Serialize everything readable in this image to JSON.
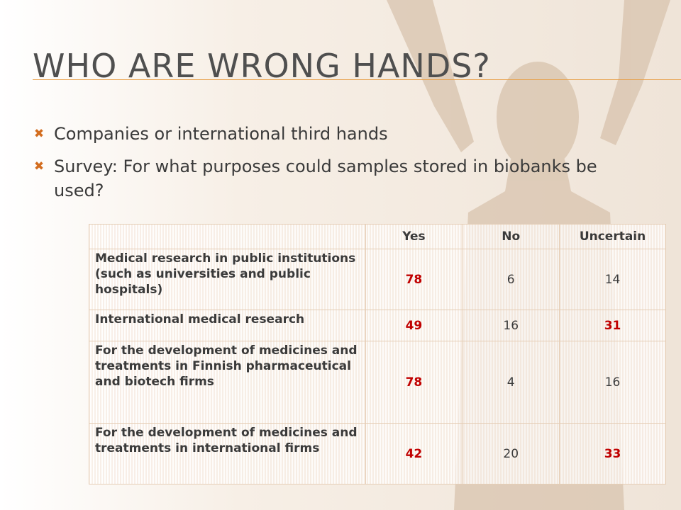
{
  "slide": {
    "title": "Who are wrong hands?",
    "bullets": [
      "Companies or international third hands",
      "Survey: For what purposes could samples stored in biobanks be used?"
    ]
  },
  "colors": {
    "title": "#4f4f4f",
    "rule": "#e8a04a",
    "bullet_marker": "#d36d1f",
    "highlight_value": "#c00000",
    "table_border": "#e5cdb5"
  },
  "icons": {
    "bullet": "multiplication-x-icon",
    "background": "raised-arms-silhouette"
  },
  "table": {
    "headers": [
      "",
      "Yes",
      "No",
      "Uncertain"
    ],
    "rows": [
      {
        "label": "Medical research in public institutions (such as universities and public hospitals)",
        "yes": "78",
        "no": "6",
        "uncertain": "14"
      },
      {
        "label": "International medical research",
        "yes": "49",
        "no": "16",
        "uncertain": "31"
      },
      {
        "label": "For the development of medicines and treatments in Finnish pharmaceutical and biotech firms",
        "yes": "78",
        "no": "4",
        "uncertain": "16"
      },
      {
        "label": "For the development of medicines and treatments in international firms",
        "yes": "42",
        "no": "20",
        "uncertain": "33"
      }
    ],
    "highlighted": {
      "yes": [
        true,
        true,
        true,
        true
      ],
      "no": [
        false,
        false,
        false,
        false
      ],
      "uncertain": [
        false,
        true,
        false,
        true
      ]
    }
  }
}
